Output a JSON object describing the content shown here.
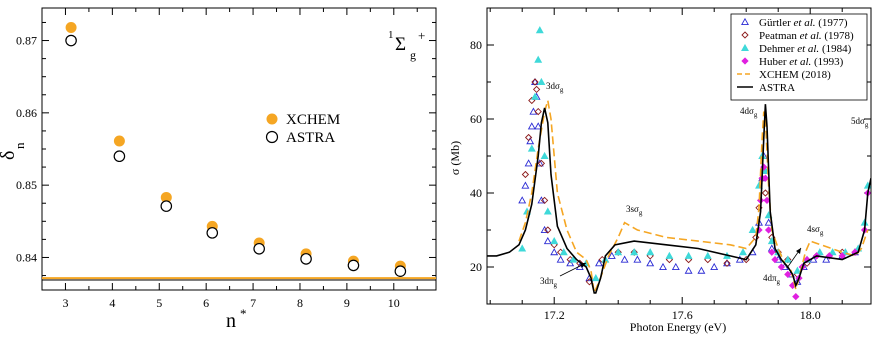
{
  "colors": {
    "xchem": "#f5a623",
    "astra": "#000000",
    "gurtler": "#2a2ad4",
    "peatman": "#8b1a1a",
    "dehmer": "#3fd9d9",
    "huber": "#e020e0"
  },
  "chart_data": [
    {
      "type": "scatter",
      "title": "",
      "xlabel": "n",
      "xlabel_sup": "*",
      "ylabel": "δ",
      "ylabel_sub": "n",
      "state": {
        "base": "1",
        "sym": "Σ",
        "sub": "g",
        "sup": "+"
      },
      "xlim": [
        2.5,
        10.9
      ],
      "ylim": [
        0.8355,
        0.8745
      ],
      "xticks": [
        "3",
        "4",
        "5",
        "6",
        "7",
        "8",
        "9",
        "10"
      ],
      "yticks": [
        "0.84",
        "0.85",
        "0.86",
        "0.87"
      ],
      "asymptote": 0.837,
      "legend_position": "center-right",
      "series": [
        {
          "name": "XCHEM",
          "marker": "filled-circle",
          "x": [
            3.12,
            4.15,
            5.15,
            6.13,
            7.13,
            8.13,
            9.14,
            10.14
          ],
          "y": [
            0.8718,
            0.8561,
            0.8483,
            0.8443,
            0.842,
            0.8405,
            0.8395,
            0.8388
          ]
        },
        {
          "name": "ASTRA",
          "marker": "open-circle",
          "x": [
            3.12,
            4.15,
            5.15,
            6.13,
            7.13,
            8.13,
            9.14,
            10.14
          ],
          "y": [
            0.87,
            0.854,
            0.8471,
            0.8434,
            0.8412,
            0.8398,
            0.8389,
            0.8381
          ]
        }
      ]
    },
    {
      "type": "line",
      "title": "",
      "xlabel": "Photon Energy (eV)",
      "ylabel": "σ (Mb)",
      "xlim": [
        16.99,
        18.19
      ],
      "ylim": [
        10,
        90
      ],
      "xticks": [
        "17.2",
        "17.6",
        "18.0"
      ],
      "yticks": [
        "20",
        "40",
        "60",
        "80"
      ],
      "legend_position": "top-right",
      "legend": [
        {
          "author": "Gürtler",
          "rest": "(1977)"
        },
        {
          "author": "Peatman",
          "rest": "(1978)"
        },
        {
          "author": "Dehmer",
          "rest": "(1984)"
        },
        {
          "author": "Huber",
          "rest": "(1993)"
        },
        {
          "author": "XCHEM (2018)",
          "rest": ""
        },
        {
          "author": "ASTRA",
          "rest": ""
        }
      ],
      "etal": "et al.",
      "annotations": {
        "a3dsg": {
          "main": "3dσ",
          "sub": "g"
        },
        "a3dpg": {
          "main": "3dπ",
          "sub": "g"
        },
        "a3ssg": {
          "main": "3sσ",
          "sub": "g"
        },
        "a4dsg": {
          "main": "4dσ",
          "sub": "g"
        },
        "a4dpg": {
          "main": "4dπ",
          "sub": "g"
        },
        "a4ssg": {
          "main": "4sσ",
          "sub": "g"
        },
        "a5dsg": {
          "main": "5dσ",
          "sub": "g"
        }
      },
      "series": [
        {
          "name": "ASTRA",
          "style": "solid",
          "x": [
            16.99,
            17.02,
            17.06,
            17.09,
            17.11,
            17.13,
            17.15,
            17.16,
            17.17,
            17.18,
            17.19,
            17.21,
            17.24,
            17.27,
            17.3,
            17.315,
            17.325,
            17.33,
            17.345,
            17.36,
            17.39,
            17.45,
            17.55,
            17.65,
            17.75,
            17.8,
            17.83,
            17.845,
            17.855,
            17.86,
            17.865,
            17.875,
            17.89,
            17.91,
            17.93,
            17.945,
            17.955,
            17.965,
            17.98,
            18.02,
            18.1,
            18.15,
            18.17,
            18.18,
            18.19
          ],
          "y": [
            23,
            23,
            24,
            26,
            30,
            37,
            50,
            59,
            63,
            59,
            45,
            31,
            25,
            22,
            20,
            17,
            13,
            13,
            17,
            23,
            26,
            27,
            26,
            25,
            23,
            22,
            26,
            35,
            55,
            64,
            58,
            35,
            25,
            22,
            20,
            18,
            15,
            17,
            21,
            23,
            22,
            24,
            30,
            40,
            44
          ]
        },
        {
          "name": "XCHEM (2018)",
          "style": "dashed",
          "x": [
            17.09,
            17.11,
            17.13,
            17.15,
            17.17,
            17.18,
            17.19,
            17.21,
            17.24,
            17.27,
            17.3,
            17.315,
            17.325,
            17.34,
            17.37,
            17.4,
            17.42,
            17.46,
            17.55,
            17.65,
            17.75,
            17.8,
            17.83,
            17.84,
            17.85,
            17.855,
            17.86,
            17.87,
            17.88,
            17.9,
            17.92,
            17.94,
            17.955,
            17.965,
            17.985,
            18.0,
            18.1,
            18.14,
            18.16,
            18.18
          ],
          "y": [
            27,
            32,
            40,
            52,
            62,
            65,
            60,
            40,
            30,
            24,
            22,
            19,
            13,
            16,
            23,
            28,
            32,
            30,
            28,
            27,
            26,
            25,
            28,
            36,
            55,
            62,
            60,
            42,
            30,
            25,
            21,
            19,
            14,
            17,
            24,
            27,
            24,
            23,
            25,
            30
          ]
        }
      ],
      "experiments": [
        {
          "name": "Gürtler",
          "marker": "open-triangle",
          "x": [
            17.1,
            17.11,
            17.12,
            17.125,
            17.13,
            17.135,
            17.14,
            17.145,
            17.15,
            17.155,
            17.16,
            17.17,
            17.18,
            17.2,
            17.22,
            17.25,
            17.28,
            17.31,
            17.34,
            17.38,
            17.42,
            17.46,
            17.5,
            17.54,
            17.58,
            17.62,
            17.66,
            17.7,
            17.74,
            17.78,
            17.82,
            17.84,
            17.85,
            17.855,
            17.86,
            17.87,
            17.88,
            17.9,
            17.92,
            17.94,
            17.96,
            17.98,
            18.01,
            18.05,
            18.1,
            18.14
          ],
          "y": [
            38,
            42,
            48,
            54,
            58,
            62,
            70,
            66,
            58,
            48,
            38,
            30,
            27,
            24,
            22,
            21,
            20,
            17,
            21,
            23,
            22,
            22,
            21,
            20,
            20,
            19,
            19,
            20,
            21,
            22,
            24,
            32,
            44,
            50,
            46,
            32,
            25,
            22,
            20,
            18,
            16,
            20,
            22,
            22,
            23,
            24
          ]
        },
        {
          "name": "Peatman",
          "marker": "open-diamond",
          "x": [
            17.11,
            17.12,
            17.13,
            17.14,
            17.145,
            17.15,
            17.16,
            17.17,
            17.18,
            17.2,
            17.22,
            17.25,
            17.28,
            17.31,
            17.35,
            17.4,
            17.45,
            17.5,
            17.56,
            17.62,
            17.68,
            17.74,
            17.8,
            17.83,
            17.84,
            17.85,
            17.86,
            17.88,
            17.9,
            17.93,
            17.96,
            17.99,
            18.02,
            18.06,
            18.1,
            18.14
          ],
          "y": [
            45,
            55,
            65,
            70,
            68,
            62,
            48,
            38,
            30,
            26,
            24,
            22,
            21,
            16,
            22,
            24,
            24,
            23,
            22,
            22,
            22,
            21,
            22,
            28,
            36,
            44,
            40,
            28,
            24,
            22,
            18,
            21,
            23,
            23,
            24,
            24
          ]
        },
        {
          "name": "Dehmer",
          "marker": "filled-triangle",
          "x": [
            17.1,
            17.115,
            17.13,
            17.14,
            17.15,
            17.155,
            17.16,
            17.17,
            17.18,
            17.2,
            17.23,
            17.26,
            17.3,
            17.33,
            17.36,
            17.4,
            17.45,
            17.5,
            17.56,
            17.62,
            17.68,
            17.74,
            17.79,
            17.82,
            17.84,
            17.85,
            17.86,
            17.87,
            17.88,
            17.9,
            17.93,
            17.96,
            17.99,
            18.03,
            18.07,
            18.11,
            18.15,
            18.17,
            18.18
          ],
          "y": [
            25,
            35,
            52,
            66,
            76,
            84,
            70,
            50,
            35,
            27,
            24,
            22,
            21,
            17,
            22,
            24,
            24,
            24,
            23,
            23,
            23,
            23,
            24,
            30,
            42,
            50,
            46,
            34,
            27,
            24,
            22,
            19,
            22,
            24,
            24,
            24,
            25,
            32,
            42
          ]
        },
        {
          "name": "Huber",
          "marker": "filled-diamond",
          "x": [
            17.84,
            17.845,
            17.85,
            17.855,
            17.86,
            17.865,
            17.87,
            17.88,
            17.89,
            17.91,
            17.93,
            17.945,
            17.955,
            17.965,
            17.975,
            17.99,
            18.02,
            18.06,
            18.1,
            18.14,
            18.17,
            18.18
          ],
          "y": [
            30,
            38,
            44,
            47,
            44,
            38,
            30,
            24,
            22,
            20,
            18,
            15,
            12,
            17,
            20,
            22,
            23,
            23,
            23,
            24,
            30,
            40
          ]
        }
      ]
    }
  ]
}
